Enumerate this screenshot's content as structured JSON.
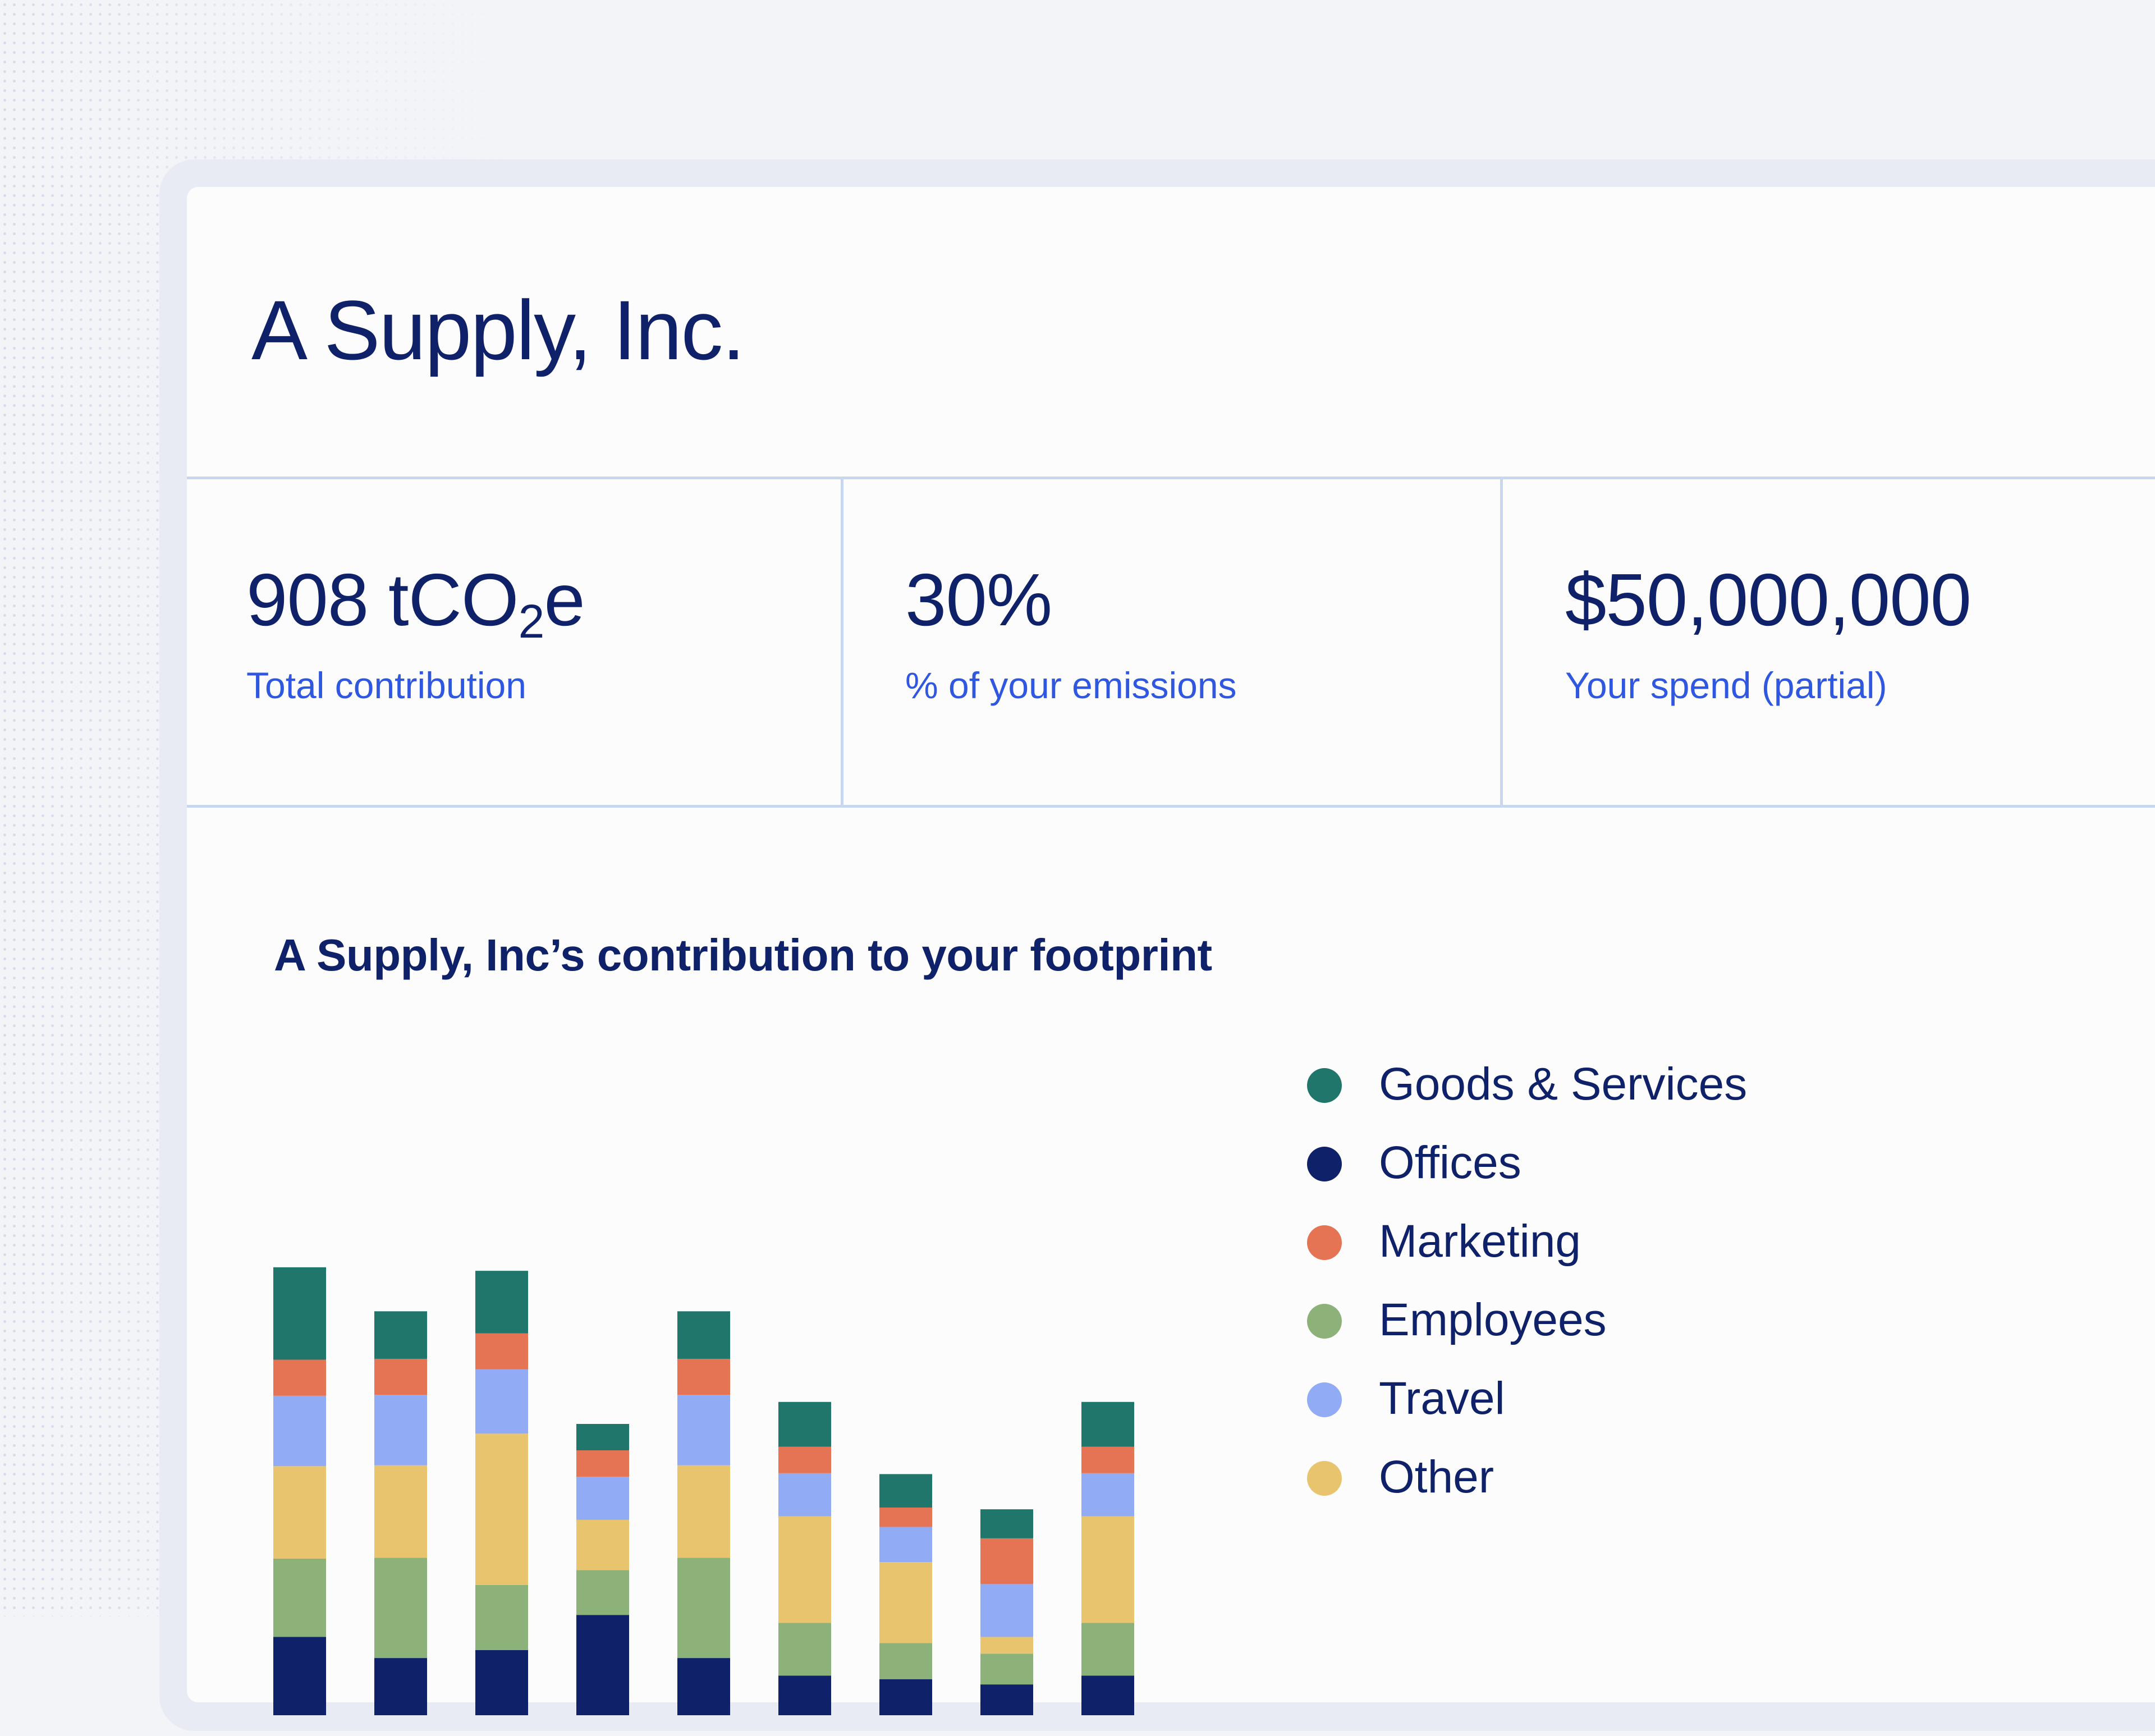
{
  "company": {
    "name": "A Supply, Inc."
  },
  "stats": [
    {
      "value_main": "908 tCO",
      "value_sub": "2",
      "value_end": "e",
      "label": "Total contribution"
    },
    {
      "value_main": "30%",
      "label": "% of your emissions"
    },
    {
      "value_main": "$50,000,000",
      "label": "Your spend (partial)"
    }
  ],
  "chart_data": {
    "type": "bar",
    "stacked": true,
    "title": "A Supply, Inc’s contribution to your footprint",
    "xlabel": "",
    "ylabel": "",
    "categories": [
      "",
      "",
      "",
      "",
      "",
      "",
      "",
      "",
      ""
    ],
    "series": [
      {
        "name": "Offices",
        "color": "#0f2168",
        "values": [
          89,
          65,
          74,
          114,
          65,
          45,
          41,
          35,
          45
        ]
      },
      {
        "name": "Employees",
        "color": "#8cb27a",
        "values": [
          89,
          114,
          74,
          51,
          114,
          60,
          41,
          35,
          60
        ]
      },
      {
        "name": "Other",
        "color": "#e8c46f",
        "values": [
          105,
          105,
          172,
          57,
          105,
          121,
          92,
          19,
          121
        ]
      },
      {
        "name": "Travel",
        "color": "#91abf5",
        "values": [
          80,
          80,
          73,
          49,
          80,
          49,
          40,
          60,
          49
        ]
      },
      {
        "name": "Marketing",
        "color": "#e47454",
        "values": [
          41,
          41,
          41,
          30,
          41,
          30,
          22,
          52,
          30
        ]
      },
      {
        "name": "Goods & Services",
        "color": "#20766a",
        "values": [
          105,
          54,
          71,
          30,
          54,
          51,
          38,
          33,
          51
        ]
      }
    ],
    "legend_position": "right",
    "grid": false
  },
  "legend": [
    {
      "label": "Goods & Services",
      "color": "#20766a"
    },
    {
      "label": "Offices",
      "color": "#0f2168"
    },
    {
      "label": "Marketing",
      "color": "#e47454"
    },
    {
      "label": "Employees",
      "color": "#8cb27a"
    },
    {
      "label": "Travel",
      "color": "#91abf5"
    },
    {
      "label": "Other",
      "color": "#e8c46f"
    }
  ]
}
